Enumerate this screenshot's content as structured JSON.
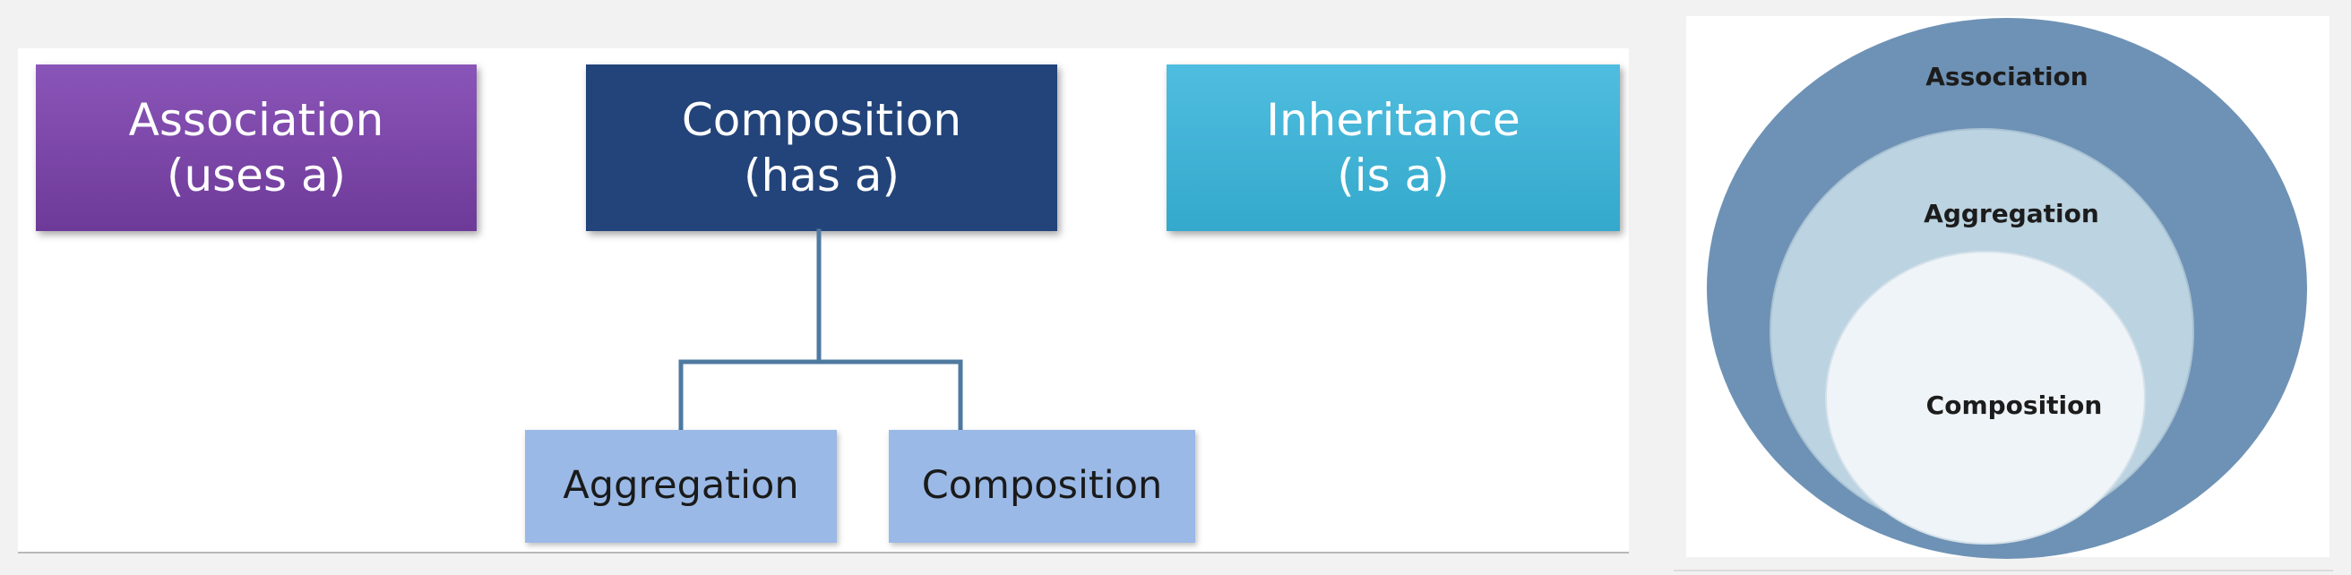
{
  "hierarchy": {
    "association": {
      "title": "Association",
      "subtitle": "(uses a)"
    },
    "composition": {
      "title": "Composition",
      "subtitle": "(has a)"
    },
    "inheritance": {
      "title": "Inheritance",
      "subtitle": "(is a)"
    },
    "children": {
      "aggregation": "Aggregation",
      "composition": "Composition"
    }
  },
  "nested": {
    "outer": "Association",
    "middle": "Aggregation",
    "inner": "Composition"
  },
  "colors": {
    "association": "#7d47aa",
    "composition": "#23447a",
    "inheritance": "#3fb3d6",
    "child_box": "#9ab9e6",
    "connector": "#4f7aa0",
    "venn_outer": "#6e92b5",
    "venn_middle": "#bcd3e1",
    "venn_inner": "#eef4f7"
  }
}
